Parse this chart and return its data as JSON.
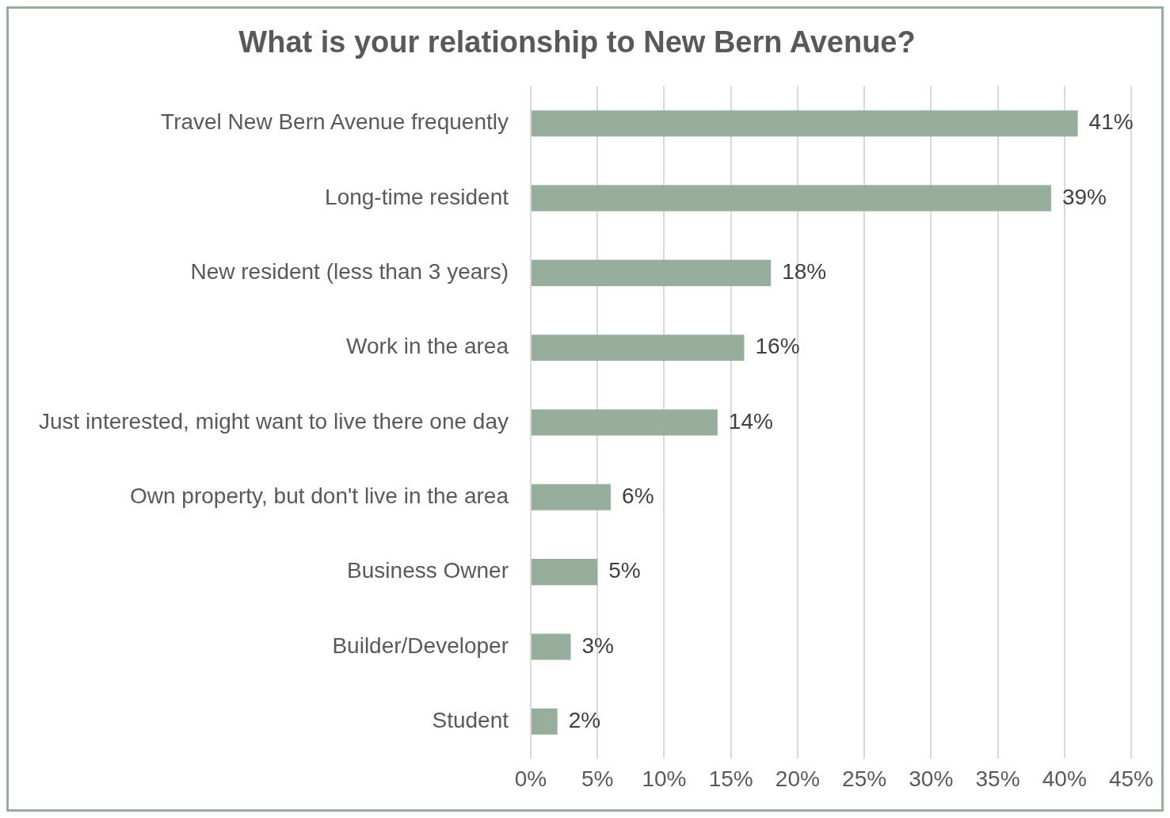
{
  "chart_data": {
    "type": "bar",
    "orientation": "horizontal",
    "title": "What is your relationship to New Bern Avenue?",
    "categories": [
      "Travel New Bern Avenue frequently",
      "Long-time resident",
      "New resident (less than 3 years)",
      "Work in the area",
      "Just interested, might want to live there one day",
      "Own property, but don't live in the area",
      "Business Owner",
      "Builder/Developer",
      "Student"
    ],
    "values": [
      41,
      39,
      18,
      16,
      14,
      6,
      5,
      3,
      2
    ],
    "value_labels": [
      "41%",
      "39%",
      "18%",
      "16%",
      "14%",
      "6%",
      "5%",
      "3%",
      "2%"
    ],
    "color": "#98ae9c",
    "xlim": [
      0,
      45
    ],
    "xticks": [
      {
        "value": 0,
        "label": "0%"
      },
      {
        "value": 5,
        "label": "5%"
      },
      {
        "value": 10,
        "label": "10%"
      },
      {
        "value": 15,
        "label": "15%"
      },
      {
        "value": 20,
        "label": "20%"
      },
      {
        "value": 25,
        "label": "25%"
      },
      {
        "value": 30,
        "label": "30%"
      },
      {
        "value": 35,
        "label": "35%"
      },
      {
        "value": 40,
        "label": "40%"
      },
      {
        "value": 45,
        "label": "45%"
      }
    ],
    "grid": "x"
  }
}
